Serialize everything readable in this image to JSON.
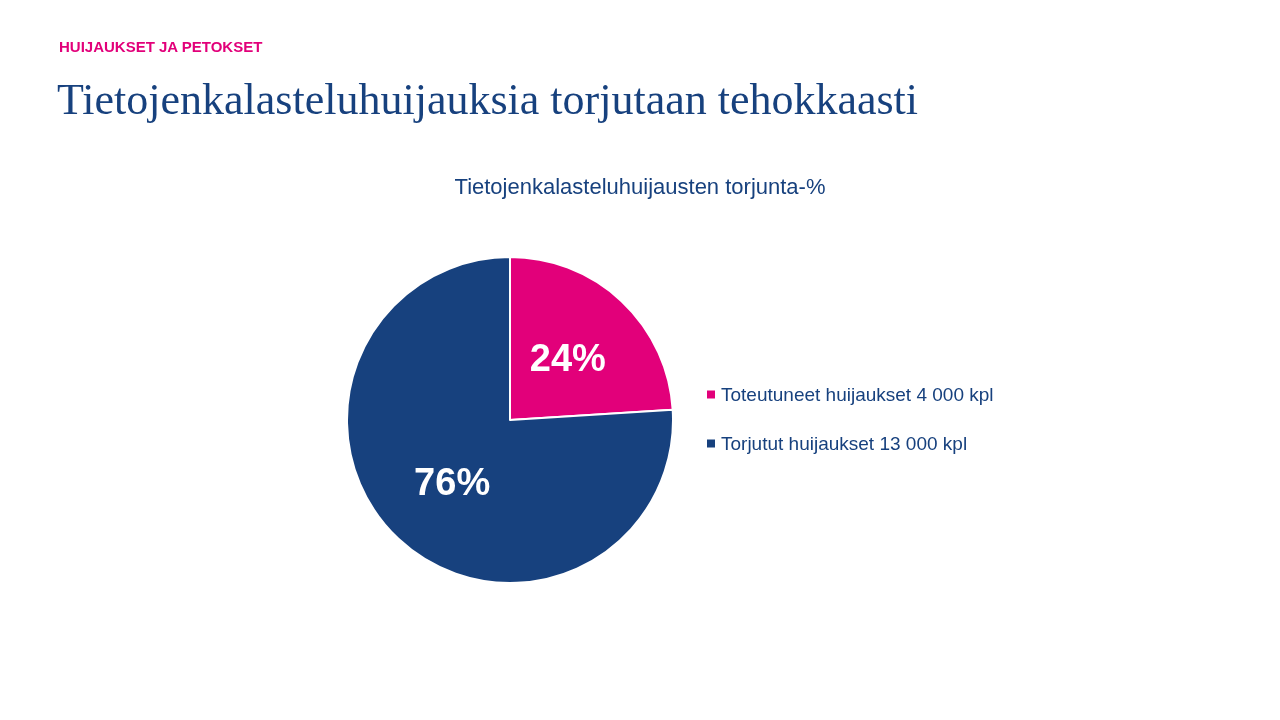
{
  "chart_data": {
    "type": "pie",
    "title": "Tietojenkalasteluhuijauksia torjutaan tehokkaasti",
    "subtitle": "Tietojenkalasteluhuijausten torjunta-%",
    "annotations": [
      "HUIJAUKSET JA PETOKSET"
    ],
    "categories": [
      "Toteutuneet huijaukset 4 000 kpl",
      "Torjutut huijaukset 13 000 kpl"
    ],
    "values": [
      24,
      76
    ],
    "colors": [
      "#e2007a",
      "#17417e"
    ],
    "value_labels": [
      "24%",
      "76%"
    ],
    "legend": "right"
  }
}
